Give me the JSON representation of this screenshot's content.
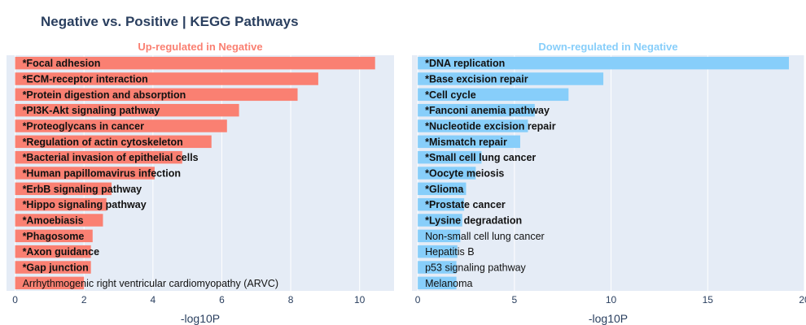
{
  "title": "Negative vs. Positive | KEGG Pathways",
  "colors": {
    "title": "#2a3f5f",
    "plot_bg": "#e5ecf6",
    "grid": "#ffffff",
    "up": "#fa8072",
    "down": "#87cefa",
    "up_title": "#fa8072",
    "down_title": "#87cefa"
  },
  "chart_data": [
    {
      "type": "bar",
      "orientation": "horizontal",
      "subtitle": "Up-regulated in Negative",
      "xlabel": "-log10P",
      "xlim": [
        -0.25,
        11.0
      ],
      "xticks": [
        0,
        2,
        4,
        6,
        8,
        10
      ],
      "xtick_labels": [
        "0",
        "2",
        "4",
        "6",
        "8",
        "10"
      ],
      "color_key": "up",
      "categories": [
        "*Focal adhesion",
        "*ECM-receptor interaction",
        "*Protein digestion and absorption",
        "*PI3K-Akt signaling pathway",
        "*Proteoglycans in cancer",
        "*Regulation of actin cytoskeleton",
        "*Bacterial invasion of epithelial cells",
        "*Human papillomavirus infection",
        "*ErbB signaling pathway",
        "*Hippo signaling pathway",
        "*Amoebiasis",
        "*Phagosome",
        "*Axon guidance",
        "*Gap junction",
        "Arrhythmogenic right ventricular cardiomyopathy (ARVC)"
      ],
      "values": [
        10.45,
        8.8,
        8.2,
        6.5,
        6.15,
        5.7,
        4.85,
        4.05,
        2.8,
        2.65,
        2.55,
        2.25,
        2.2,
        2.2,
        2.0
      ],
      "bold": [
        true,
        true,
        true,
        true,
        true,
        true,
        true,
        true,
        true,
        true,
        true,
        true,
        true,
        true,
        false
      ]
    },
    {
      "type": "bar",
      "orientation": "horizontal",
      "subtitle": "Down-regulated in Negative",
      "xlabel": "-log10P",
      "xlim": [
        -0.3,
        20.0
      ],
      "xticks": [
        0,
        5,
        10,
        15,
        20
      ],
      "xtick_labels": [
        "0",
        "5",
        "10",
        "15",
        "20"
      ],
      "color_key": "down",
      "categories": [
        "*DNA replication",
        "*Base excision repair",
        "*Cell cycle",
        "*Fanconi anemia pathway",
        "*Nucleotide excision repair",
        "*Mismatch repair",
        "*Small cell lung cancer",
        "*Oocyte meiosis",
        "*Glioma",
        "*Prostate cancer",
        "*Lysine degradation",
        "Non-small cell lung cancer",
        "Hepatitis B",
        "p53 signaling pathway",
        "Melanoma"
      ],
      "values": [
        19.2,
        9.6,
        7.8,
        6.05,
        5.7,
        5.3,
        3.3,
        3.0,
        2.5,
        2.4,
        2.3,
        2.2,
        2.05,
        2.0,
        2.0
      ],
      "bold": [
        true,
        true,
        true,
        true,
        true,
        true,
        true,
        true,
        true,
        true,
        true,
        false,
        false,
        false,
        false
      ]
    }
  ]
}
